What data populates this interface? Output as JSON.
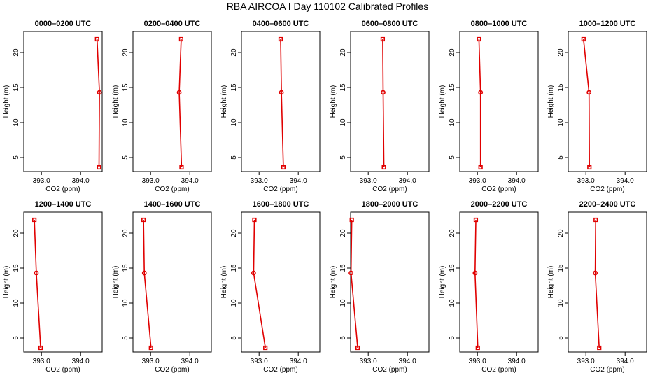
{
  "title": "RBA AIRCOA I  Day 110102  Calibrated Profiles",
  "chart_data": {
    "type": "line",
    "xlabel": "CO2 (ppm)",
    "ylabel": "Height (m)",
    "ylim": [
      3,
      23
    ],
    "yticks": [
      5,
      10,
      15,
      20
    ],
    "heights": [
      21.9,
      14.3,
      3.6
    ],
    "colors": {
      "line": "#e00000",
      "marker": "#e00000"
    },
    "panels": [
      {
        "title": "0000–0200 UTC",
        "xlim": [
          392.55,
          394.55
        ],
        "xticks": [
          "393.0",
          "394.0"
        ],
        "x": [
          394.42,
          394.48,
          394.47
        ]
      },
      {
        "title": "0200–0400 UTC",
        "xlim": [
          392.55,
          394.55
        ],
        "xticks": [
          "393.0",
          "394.0"
        ],
        "x": [
          393.78,
          393.73,
          393.79
        ]
      },
      {
        "title": "0400–0600 UTC",
        "xlim": [
          392.55,
          394.55
        ],
        "xticks": [
          "393.0",
          "394.0"
        ],
        "x": [
          393.55,
          393.57,
          393.62
        ]
      },
      {
        "title": "0600–0800 UTC",
        "xlim": [
          392.55,
          394.55
        ],
        "xticks": [
          "393.0",
          "394.0"
        ],
        "x": [
          393.37,
          393.38,
          393.4
        ]
      },
      {
        "title": "0800–1000 UTC",
        "xlim": [
          392.55,
          394.55
        ],
        "xticks": [
          "393.0",
          "394.0"
        ],
        "x": [
          393.04,
          393.08,
          393.08
        ]
      },
      {
        "title": "1000–1200 UTC",
        "xlim": [
          392.55,
          394.55
        ],
        "xticks": [
          "393.0",
          "394.0"
        ],
        "x": [
          392.94,
          393.08,
          393.09
        ]
      },
      {
        "title": "1200–1400 UTC",
        "xlim": [
          392.55,
          394.55
        ],
        "xticks": [
          "393.0",
          "394.0"
        ],
        "x": [
          392.82,
          392.87,
          392.98
        ]
      },
      {
        "title": "1400–1600 UTC",
        "xlim": [
          392.55,
          394.55
        ],
        "xticks": [
          "393.0",
          "394.0"
        ],
        "x": [
          392.82,
          392.84,
          393.01
        ]
      },
      {
        "title": "1600–1800 UTC",
        "xlim": [
          392.55,
          394.55
        ],
        "xticks": [
          "393.0",
          "394.0"
        ],
        "x": [
          392.88,
          392.86,
          393.16
        ]
      },
      {
        "title": "1800–2000 UTC",
        "xlim": [
          392.55,
          394.55
        ],
        "xticks": [
          "393.0",
          "394.0"
        ],
        "x": [
          392.58,
          392.56,
          392.73
        ]
      },
      {
        "title": "2000–2200 UTC",
        "xlim": [
          392.55,
          394.55
        ],
        "xticks": [
          "393.0",
          "394.0"
        ],
        "x": [
          392.96,
          392.94,
          393.01
        ]
      },
      {
        "title": "2200–2400 UTC",
        "xlim": [
          392.55,
          394.55
        ],
        "xticks": [
          "393.0",
          "394.0"
        ],
        "x": [
          393.25,
          393.24,
          393.34
        ]
      }
    ]
  }
}
